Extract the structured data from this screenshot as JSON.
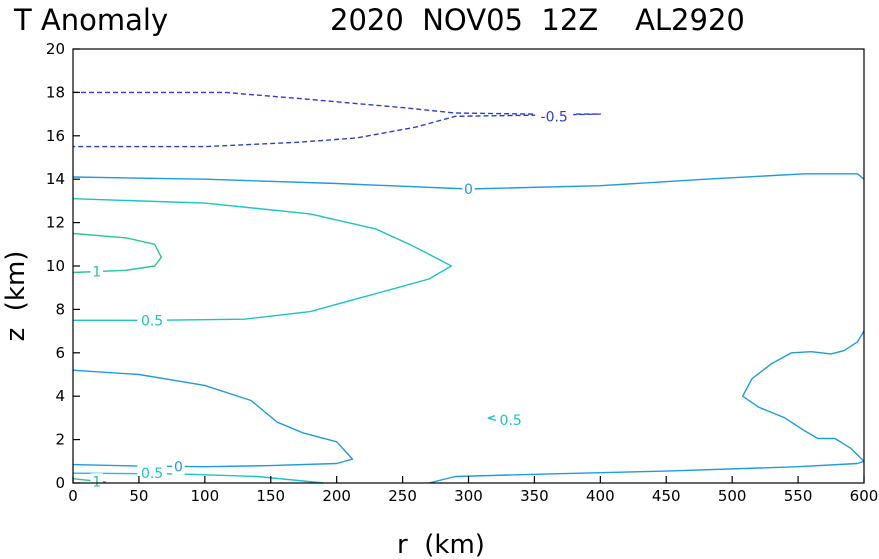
{
  "chart_data": {
    "type": "contour",
    "title_left": "T Anomaly",
    "title_right": "2020  NOV05  12Z    AL2920",
    "xlabel": "r  (km)",
    "ylabel": "z  (km)",
    "xlim": [
      0,
      600
    ],
    "ylim": [
      0,
      20
    ],
    "xticks": [
      "0",
      "50",
      "100",
      "150",
      "200",
      "250",
      "300",
      "350",
      "400",
      "450",
      "500",
      "550",
      "600"
    ],
    "yticks": [
      "0",
      "2",
      "4",
      "6",
      "8",
      "10",
      "12",
      "14",
      "16",
      "18",
      "20"
    ],
    "grid": false,
    "colors": {
      "neg_0_5": "#2c3fd4",
      "zero": "#1f9be0",
      "pos_0_5": "#1cc4c4",
      "pos_1": "#2bc49b"
    },
    "contours": [
      {
        "level": -0.5,
        "dashed": true,
        "color_key": "neg_0_5",
        "points": [
          [
            0,
            18
          ],
          [
            115,
            18
          ],
          [
            175,
            17.7
          ],
          [
            250,
            17.3
          ],
          [
            290,
            17.05
          ],
          [
            350,
            17
          ],
          [
            400,
            17
          ],
          [
            350,
            16.95
          ],
          [
            290,
            16.9
          ],
          [
            260,
            16.4
          ],
          [
            215,
            15.9
          ],
          [
            170,
            15.7
          ],
          [
            100,
            15.5
          ],
          [
            0,
            15.5
          ]
        ],
        "label": "-0.5",
        "label_at": [
          365,
          16.9
        ]
      },
      {
        "level": 0,
        "dashed": false,
        "color_key": "zero",
        "points": [
          [
            0,
            14.1
          ],
          [
            100,
            14.0
          ],
          [
            200,
            13.8
          ],
          [
            300,
            13.55
          ],
          [
            400,
            13.7
          ],
          [
            480,
            14.0
          ],
          [
            555,
            14.25
          ],
          [
            595,
            14.25
          ],
          [
            600,
            14.0
          ]
        ],
        "label": "0",
        "label_at": [
          300,
          13.55
        ]
      },
      {
        "level": 0,
        "dashed": false,
        "color_key": "zero",
        "points": [
          [
            600,
            7.0
          ],
          [
            595,
            6.5
          ],
          [
            585,
            6.1
          ],
          [
            575,
            5.95
          ],
          [
            560,
            6.05
          ],
          [
            545,
            6.0
          ],
          [
            530,
            5.5
          ],
          [
            515,
            4.8
          ],
          [
            508,
            4.0
          ],
          [
            520,
            3.5
          ],
          [
            540,
            3.0
          ],
          [
            555,
            2.4
          ],
          [
            565,
            2.05
          ],
          [
            578,
            2.05
          ],
          [
            590,
            1.6
          ],
          [
            600,
            1.0
          ]
        ],
        "label": "",
        "label_at": null
      },
      {
        "level": 0,
        "dashed": false,
        "color_key": "zero",
        "points": [
          [
            0,
            5.2
          ],
          [
            50,
            5.0
          ],
          [
            100,
            4.5
          ],
          [
            135,
            3.8
          ],
          [
            155,
            2.8
          ],
          [
            175,
            2.3
          ],
          [
            200,
            1.9
          ],
          [
            212,
            1.1
          ],
          [
            200,
            0.9
          ],
          [
            150,
            0.8
          ],
          [
            100,
            0.75
          ],
          [
            50,
            0.78
          ],
          [
            0,
            0.85
          ]
        ],
        "label": "0",
        "label_at": [
          80,
          0.75
        ]
      },
      {
        "level": 0,
        "dashed": false,
        "color_key": "zero",
        "points": [
          [
            270,
            0
          ],
          [
            290,
            0.3
          ],
          [
            350,
            0.4
          ],
          [
            450,
            0.55
          ],
          [
            550,
            0.75
          ],
          [
            595,
            0.9
          ],
          [
            600,
            1.0
          ]
        ],
        "label": "",
        "label_at": null
      },
      {
        "level": 0.5,
        "dashed": false,
        "color_key": "pos_0_5",
        "points": [
          [
            0,
            13.1
          ],
          [
            100,
            12.9
          ],
          [
            180,
            12.4
          ],
          [
            230,
            11.7
          ],
          [
            255,
            11.0
          ],
          [
            265,
            10.7
          ],
          [
            287,
            10.0
          ],
          [
            270,
            9.4
          ],
          [
            240,
            8.9
          ],
          [
            210,
            8.4
          ],
          [
            180,
            7.9
          ],
          [
            130,
            7.55
          ],
          [
            60,
            7.5
          ],
          [
            0,
            7.5
          ]
        ],
        "label": "0.5",
        "label_at": [
          60,
          7.5
        ]
      },
      {
        "level": 0.5,
        "dashed": false,
        "color_key": "pos_0_5",
        "points": [
          [
            320,
            3.1
          ],
          [
            315,
            3.0
          ],
          [
            320,
            2.9
          ],
          [
            337,
            2.9
          ]
        ],
        "label": "0.5",
        "label_at": [
          332,
          2.9
        ]
      },
      {
        "level": 0.5,
        "dashed": false,
        "color_key": "pos_0_5",
        "points": [
          [
            0,
            0.45
          ],
          [
            80,
            0.42
          ],
          [
            140,
            0.3
          ],
          [
            190,
            0
          ]
        ],
        "label": "0.5",
        "label_at": [
          60,
          0.45
        ]
      },
      {
        "level": 1,
        "dashed": false,
        "color_key": "pos_1",
        "points": [
          [
            0,
            11.5
          ],
          [
            40,
            11.3
          ],
          [
            62,
            11.0
          ],
          [
            67,
            10.4
          ],
          [
            62,
            10.0
          ],
          [
            40,
            9.8
          ],
          [
            0,
            9.7
          ]
        ],
        "label": "1",
        "label_at": [
          18,
          9.75
        ]
      },
      {
        "level": 1,
        "dashed": false,
        "color_key": "pos_1",
        "points": [
          [
            0,
            0.2
          ],
          [
            15,
            0.1
          ],
          [
            25,
            0.05
          ]
        ],
        "label": "1",
        "label_at": [
          18,
          0.08
        ]
      }
    ]
  }
}
